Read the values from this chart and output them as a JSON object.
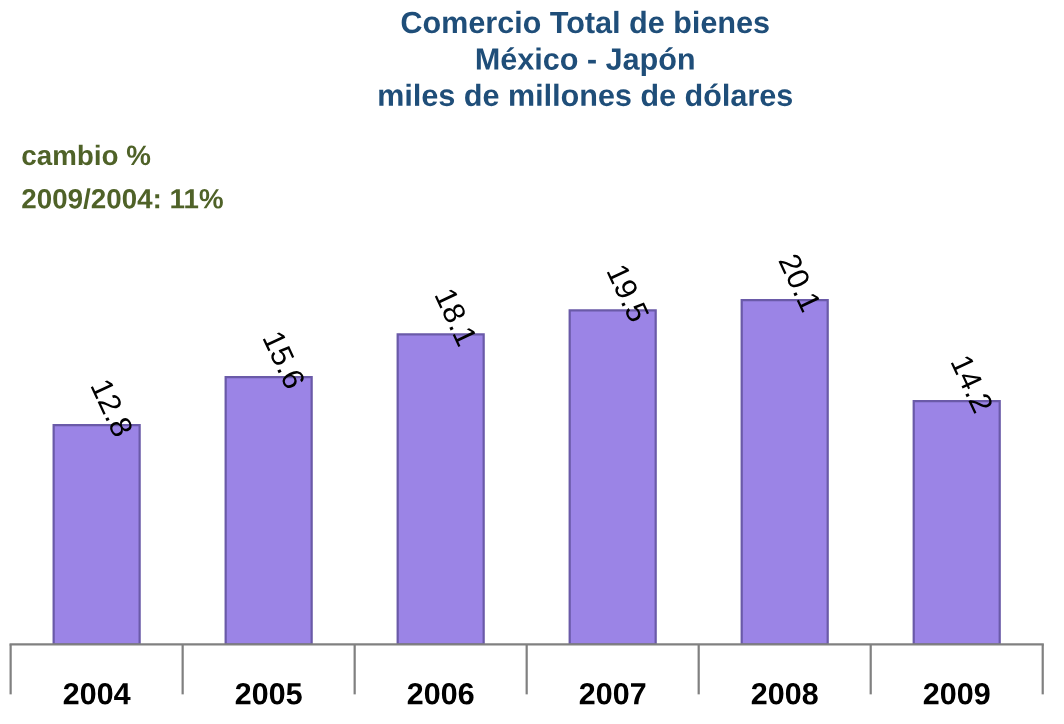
{
  "chart_data": {
    "type": "bar",
    "title": "Comercio Total de bienes\nMéxico - Japón\nmiles de millones de dólares",
    "categories": [
      "2004",
      "2005",
      "2006",
      "2007",
      "2008",
      "2009"
    ],
    "values": [
      12.8,
      15.6,
      18.1,
      19.5,
      20.1,
      14.2
    ],
    "color": "#9b84e6",
    "data_labels": true,
    "annotations": [
      "cambio %",
      "2009/2004: 11%"
    ],
    "grid": false,
    "legend": false
  }
}
